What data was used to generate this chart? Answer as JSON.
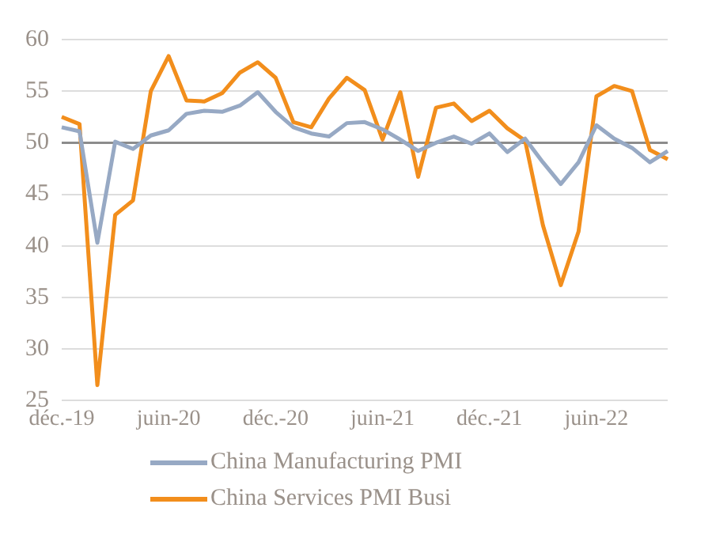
{
  "chart_data": {
    "type": "line",
    "categories": [
      "déc.-19",
      null,
      null,
      null,
      null,
      null,
      "juin-20",
      null,
      null,
      null,
      null,
      null,
      "déc.-20",
      null,
      null,
      null,
      null,
      null,
      "juin-21",
      null,
      null,
      null,
      null,
      null,
      "déc.-21",
      null,
      null,
      null,
      null,
      null,
      "juin-22",
      null,
      null,
      null,
      null
    ],
    "series": [
      {
        "name": "China Manufacturing PMI",
        "color": "#97a9c4",
        "values": [
          51.5,
          51.1,
          40.3,
          50.1,
          49.4,
          50.7,
          51.2,
          52.8,
          53.1,
          53.0,
          53.6,
          54.9,
          53.0,
          51.5,
          50.9,
          50.6,
          51.9,
          52.0,
          51.3,
          50.3,
          49.2,
          50.0,
          50.6,
          49.9,
          50.9,
          49.1,
          50.4,
          48.1,
          46.0,
          48.1,
          51.7,
          50.4,
          49.5,
          48.1,
          49.2
        ]
      },
      {
        "name": "China Services PMI Busi",
        "color": "#f28e1c",
        "values": [
          52.5,
          51.8,
          26.5,
          43.0,
          44.4,
          55.0,
          58.4,
          54.1,
          54.0,
          54.8,
          56.8,
          57.8,
          56.3,
          52.0,
          51.5,
          54.3,
          56.3,
          55.1,
          50.3,
          54.9,
          46.7,
          53.4,
          53.8,
          52.1,
          53.1,
          51.4,
          50.2,
          42.0,
          36.2,
          41.4,
          54.5,
          55.5,
          55.0,
          49.3,
          48.4
        ]
      }
    ],
    "ylim": [
      25,
      60
    ],
    "yticks": [
      25,
      30,
      35,
      40,
      45,
      50,
      55,
      60
    ],
    "ref_lines": [
      {
        "axis": "y",
        "value": 50,
        "color": "#8c8c8c"
      }
    ],
    "grid": "y",
    "legend": "bottom",
    "marker": "none",
    "line_style": "solid"
  }
}
